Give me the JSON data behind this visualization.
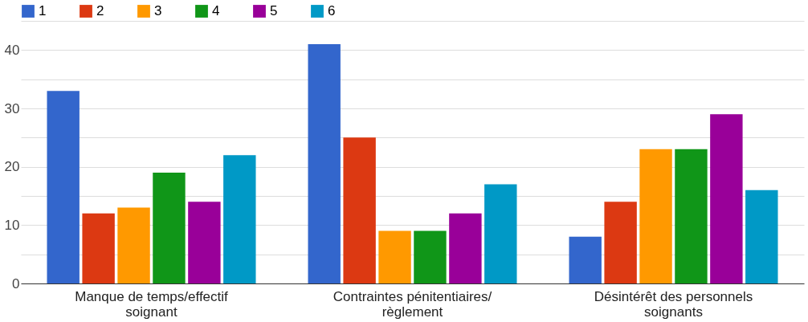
{
  "chart_data": {
    "type": "bar",
    "categories": [
      "Manque de temps/effectif soignant",
      "Contraintes pénitentiaires/ règlement",
      "Désintérêt des personnels soignants"
    ],
    "series": [
      {
        "name": "1",
        "color": "#3366cc",
        "values": [
          33,
          41,
          8
        ]
      },
      {
        "name": "2",
        "color": "#dc3912",
        "values": [
          12,
          25,
          14
        ]
      },
      {
        "name": "3",
        "color": "#ff9900",
        "values": [
          13,
          9,
          23
        ]
      },
      {
        "name": "4",
        "color": "#109618",
        "values": [
          19,
          9,
          23
        ]
      },
      {
        "name": "5",
        "color": "#990099",
        "values": [
          14,
          12,
          29
        ]
      },
      {
        "name": "6",
        "color": "#0099c6",
        "values": [
          22,
          17,
          16
        ]
      }
    ],
    "ylim": [
      0,
      45
    ],
    "yticks": [
      0,
      {
        "value": 5,
        "label": null
      },
      10,
      {
        "value": 15,
        "label": null
      },
      20,
      {
        "value": 25,
        "label": null
      },
      30,
      {
        "value": 35,
        "label": null
      },
      40,
      {
        "value": 45,
        "label": null
      }
    ],
    "grid": "y",
    "legend": "top left"
  }
}
